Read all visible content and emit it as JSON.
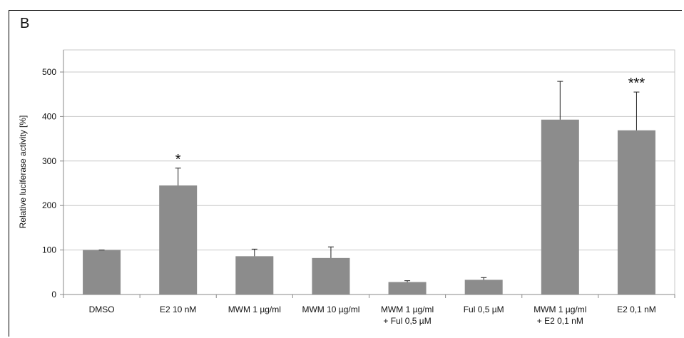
{
  "panel_label": "B",
  "chart_data": {
    "type": "bar",
    "title": "",
    "xlabel": "",
    "ylabel": "Relative luciferase activity [%]",
    "ylim": [
      0,
      500
    ],
    "yticks": [
      0,
      100,
      200,
      300,
      400,
      500
    ],
    "ytick_labels": [
      "0",
      "100",
      "200",
      "300",
      "400",
      "500"
    ],
    "grid": true,
    "categories": [
      [
        "DMSO"
      ],
      [
        "E2 10 nM"
      ],
      [
        "MWM 1 µg/ml"
      ],
      [
        "MWM 10 µg/ml"
      ],
      [
        "MWM 1 µg/ml",
        "+ Ful 0,5 µM"
      ],
      [
        "Ful 0,5 µM"
      ],
      [
        "MWM 1 µg/ml",
        "+ E2 0,1 nM"
      ],
      [
        "E2 0,1 nM"
      ]
    ],
    "values": [
      100,
      245,
      86,
      82,
      28,
      33,
      393,
      369
    ],
    "error": [
      0,
      39,
      16,
      25,
      3,
      5,
      86,
      86
    ],
    "annotations": [
      "",
      "*",
      "",
      "",
      "",
      "",
      "",
      "***"
    ],
    "colors": {
      "bar": "#8c8c8c",
      "grid": "#c8c8c8",
      "axis": "#888888",
      "error": "#222222"
    }
  }
}
